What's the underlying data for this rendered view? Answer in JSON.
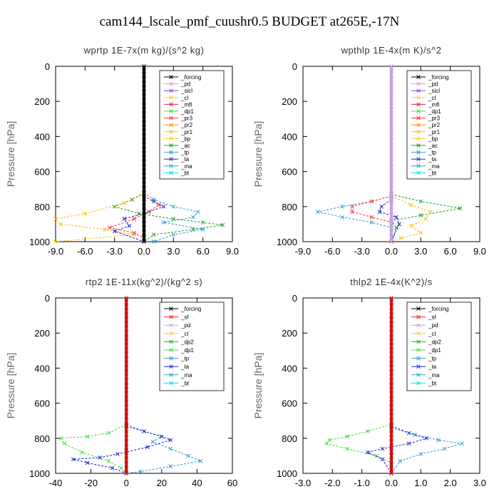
{
  "title": "cam144_lscale_pmf_cuushr0.5  BUDGET at265E,-17N",
  "colors": {
    "forcing": "#000000",
    "sf": "#ff2020",
    "pd": "#c8a0e0",
    "sicl": "#8a3cd8",
    "cl": "#ffc832",
    "mfl": "#d8205a",
    "dp1": "#40e040",
    "dp2": "#20b020",
    "pr1": "#ffc000",
    "pr2": "#ff8c00",
    "pr3": "#ff3030",
    "bp": "#ffd020",
    "ac": "#1fa01f",
    "tp": "#2f9bd8",
    "ta": "#2020d0",
    "ma": "#23a6c8",
    "bt": "#00e0ff",
    "zero_line": "#d01010",
    "zero_line_alt": "#101010"
  },
  "chart_data": [
    {
      "type": "line",
      "title": "wprtp   1E-7x(m kg)/(s^2 kg)",
      "ylabel": "Pressure [hPa]",
      "xlim": [
        -9,
        9
      ],
      "ylim": [
        1000,
        0
      ],
      "xticks": [
        "-9.0",
        "-6.0",
        "-3.0",
        "0.0",
        "3.0",
        "6.0",
        "9.0"
      ],
      "yticks": [
        "0",
        "200",
        "400",
        "600",
        "800",
        "1000"
      ],
      "legend_position": "top-right",
      "legend": [
        "_forcing",
        "_pd",
        "_sicl",
        "_cl",
        "_mfl",
        "_dp1",
        "_pr3",
        "_pr2",
        "_pr1",
        "_bp",
        "_ac",
        "_tp",
        "_ta",
        "_ma",
        "_bt"
      ],
      "zero_color": "zero_line_alt",
      "series": [
        {
          "name": "_ac",
          "color": "ac",
          "points": [
            [
              0,
              720
            ],
            [
              -1.2,
              760
            ],
            [
              -3,
              800
            ],
            [
              -0.5,
              840
            ],
            [
              3,
              870
            ],
            [
              6,
              890
            ],
            [
              8,
              905
            ],
            [
              5,
              930
            ],
            [
              1,
              960
            ],
            [
              0,
              1000
            ]
          ]
        },
        {
          "name": "_pr1",
          "color": "pr1",
          "points": [
            [
              0,
              730
            ],
            [
              -2,
              780
            ],
            [
              -6,
              840
            ],
            [
              -9,
              870
            ],
            [
              -8.5,
              900
            ],
            [
              -4,
              930
            ],
            [
              -1,
              960
            ],
            [
              -9,
              1000
            ]
          ]
        },
        {
          "name": "_tp",
          "color": "tp",
          "points": [
            [
              0,
              720
            ],
            [
              1,
              760
            ],
            [
              3,
              800
            ],
            [
              5.5,
              830
            ],
            [
              5,
              860
            ],
            [
              2,
              890
            ],
            [
              6,
              930
            ],
            [
              3,
              960
            ],
            [
              1,
              1000
            ]
          ]
        },
        {
          "name": "_ta",
          "color": "ta",
          "points": [
            [
              0,
              740
            ],
            [
              1,
              770
            ],
            [
              2,
              800
            ],
            [
              0.5,
              830
            ],
            [
              -2,
              870
            ],
            [
              -1.5,
              910
            ],
            [
              -3,
              940
            ],
            [
              0,
              1000
            ]
          ]
        },
        {
          "name": "_pr3",
          "color": "pr3",
          "points": [
            [
              0,
              740
            ],
            [
              1.5,
              790
            ],
            [
              0.5,
              830
            ],
            [
              -1,
              870
            ],
            [
              -3.5,
              920
            ],
            [
              -1,
              950
            ],
            [
              0,
              980
            ]
          ]
        },
        {
          "name": "_forcing",
          "color": "forcing",
          "points": [
            [
              0,
              0
            ],
            [
              0,
              1000
            ]
          ],
          "zero": true
        }
      ]
    },
    {
      "type": "line",
      "title": "wpthlp   1E-4x(m K)/s^2",
      "ylabel": "Pressure [hPa]",
      "xlim": [
        -9,
        9
      ],
      "ylim": [
        1000,
        0
      ],
      "xticks": [
        "-9.0",
        "-6.0",
        "-3.0",
        "0.0",
        "3.0",
        "6.0",
        "9.0"
      ],
      "yticks": [
        "0",
        "200",
        "400",
        "600",
        "800",
        "1000"
      ],
      "legend_position": "top-right",
      "legend": [
        "_forcing",
        "_pd",
        "_sicl",
        "_cl",
        "_mfl",
        "_dp1",
        "_pr3",
        "_pr2",
        "_pr1",
        "_bp",
        "_ac",
        "_tp",
        "_ta",
        "_ma",
        "_bt"
      ],
      "zero_color": "pd",
      "series": [
        {
          "name": "_ac",
          "color": "ac",
          "points": [
            [
              0,
              730
            ],
            [
              3,
              770
            ],
            [
              7,
              810
            ],
            [
              3,
              850
            ],
            [
              0,
              880
            ],
            [
              0.5,
              920
            ],
            [
              0,
              1000
            ]
          ]
        },
        {
          "name": "_tp",
          "color": "tp",
          "points": [
            [
              0,
              740
            ],
            [
              -2,
              770
            ],
            [
              -5,
              800
            ],
            [
              -7.5,
              830
            ],
            [
              -5,
              860
            ],
            [
              -2,
              890
            ],
            [
              0,
              920
            ],
            [
              0,
              1000
            ]
          ]
        },
        {
          "name": "_pr3",
          "color": "pr3",
          "points": [
            [
              0,
              740
            ],
            [
              -2,
              770
            ],
            [
              -4,
              800
            ],
            [
              -4,
              830
            ],
            [
              -2,
              860
            ],
            [
              0,
              890
            ],
            [
              0,
              1000
            ]
          ]
        },
        {
          "name": "_pr1",
          "color": "pr1",
          "points": [
            [
              0,
              740
            ],
            [
              2,
              790
            ],
            [
              4,
              830
            ],
            [
              3.5,
              870
            ],
            [
              2,
              910
            ],
            [
              3,
              950
            ],
            [
              1,
              980
            ],
            [
              0,
              1000
            ]
          ]
        },
        {
          "name": "_ta",
          "color": "ta",
          "points": [
            [
              0,
              760
            ],
            [
              -1,
              800
            ],
            [
              -1.2,
              830
            ],
            [
              0.5,
              860
            ],
            [
              0.8,
              900
            ],
            [
              0,
              1000
            ]
          ]
        },
        {
          "name": "_forcing",
          "color": "pd",
          "points": [
            [
              0,
              0
            ],
            [
              0,
              1000
            ]
          ],
          "zero": true
        }
      ]
    },
    {
      "type": "line",
      "title": "rtp2   1E-11x(kg^2)/(kg^2 s)",
      "ylabel": "Pressure [hPa]",
      "xlim": [
        -40,
        60
      ],
      "ylim": [
        1000,
        0
      ],
      "xticks": [
        "-40",
        "-20",
        "0",
        "20",
        "40",
        "60"
      ],
      "yticks": [
        "0",
        "200",
        "400",
        "600",
        "800",
        "1000"
      ],
      "legend_position": "top-right",
      "legend": [
        "_forcing",
        "_sf",
        "_pd",
        "_cl",
        "_dp2",
        "_dp1",
        "_tp",
        "_ta",
        "_ma",
        "_bt"
      ],
      "zero_color": "zero_line",
      "series": [
        {
          "name": "_dp2",
          "color": "dp1",
          "points": [
            [
              0,
              720
            ],
            [
              -10,
              770
            ],
            [
              -22,
              790
            ],
            [
              -37,
              800
            ],
            [
              -35,
              830
            ],
            [
              -25,
              880
            ],
            [
              -10,
              930
            ],
            [
              -3,
              970
            ],
            [
              0,
              1000
            ]
          ]
        },
        {
          "name": "_tp",
          "color": "tp",
          "points": [
            [
              0,
              720
            ],
            [
              10,
              760
            ],
            [
              20,
              790
            ],
            [
              15,
              820
            ],
            [
              25,
              860
            ],
            [
              35,
              900
            ],
            [
              42,
              930
            ],
            [
              25,
              960
            ],
            [
              8,
              990
            ],
            [
              0,
              1000
            ]
          ]
        },
        {
          "name": "_ta",
          "color": "ta",
          "points": [
            [
              0,
              730
            ],
            [
              10,
              760
            ],
            [
              20,
              790
            ],
            [
              25,
              810
            ],
            [
              12,
              850
            ],
            [
              -5,
              890
            ],
            [
              -15,
              910
            ],
            [
              -30,
              920
            ],
            [
              -22,
              940
            ],
            [
              -8,
              970
            ],
            [
              0,
              1000
            ]
          ]
        },
        {
          "name": "_forcing",
          "color": "zero_line",
          "points": [
            [
              0,
              0
            ],
            [
              0,
              1000
            ]
          ],
          "zero": true
        }
      ]
    },
    {
      "type": "line",
      "title": "thlp2   1E-4x(K^2)/s",
      "ylabel": "Pressure [hPa]",
      "xlim": [
        -3,
        3
      ],
      "ylim": [
        1000,
        0
      ],
      "xticks": [
        "-3.0",
        "-2.0",
        "-1.0",
        "0.0",
        "1.0",
        "2.0",
        "3.0"
      ],
      "yticks": [
        "0",
        "200",
        "400",
        "600",
        "800",
        "1000"
      ],
      "legend_position": "top-right",
      "legend": [
        "_forcing",
        "_sf",
        "_pd",
        "_cl",
        "_dp2",
        "_dp1",
        "_tp",
        "_ta",
        "_ma",
        "_bt"
      ],
      "zero_color": "zero_line",
      "series": [
        {
          "name": "_dp2",
          "color": "dp1",
          "points": [
            [
              0,
              720
            ],
            [
              -0.8,
              760
            ],
            [
              -1.5,
              790
            ],
            [
              -2.1,
              810
            ],
            [
              -2.2,
              830
            ],
            [
              -1.5,
              860
            ],
            [
              -0.5,
              900
            ],
            [
              0,
              940
            ],
            [
              0,
              1000
            ]
          ]
        },
        {
          "name": "_tp",
          "color": "tp",
          "points": [
            [
              0,
              740
            ],
            [
              0.8,
              780
            ],
            [
              1.6,
              810
            ],
            [
              2.4,
              830
            ],
            [
              1.8,
              860
            ],
            [
              1,
              890
            ],
            [
              0.3,
              930
            ],
            [
              0,
              1000
            ]
          ]
        },
        {
          "name": "_ta",
          "color": "ta",
          "points": [
            [
              0,
              730
            ],
            [
              0.6,
              770
            ],
            [
              1.2,
              800
            ],
            [
              0.6,
              830
            ],
            [
              -0.3,
              860
            ],
            [
              -0.8,
              880
            ],
            [
              -0.3,
              920
            ],
            [
              0,
              1000
            ]
          ]
        },
        {
          "name": "_forcing",
          "color": "zero_line",
          "points": [
            [
              0,
              0
            ],
            [
              0,
              1000
            ]
          ],
          "zero": true
        }
      ]
    }
  ]
}
